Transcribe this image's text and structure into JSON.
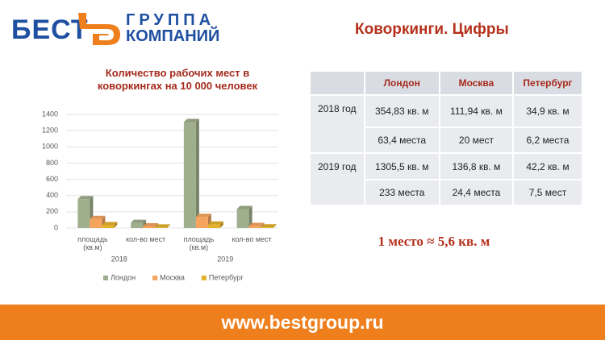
{
  "header": {
    "logo_main": "БЕСТ",
    "logo_top": "ГРУППА",
    "logo_bottom": "КОМПАНИЙ",
    "title": "Коворкинги. Цифры"
  },
  "chart_data": {
    "type": "bar",
    "title": "Количество рабочих мест в коворкингах на 10 000 человек",
    "categories": [
      "площадь (кв.м)",
      "кол-во мест",
      "площадь (кв.м)",
      "кол-во мест"
    ],
    "groups": [
      "2018",
      "2019"
    ],
    "series": [
      {
        "name": "Лондон",
        "color": "#9fae8c",
        "values": [
          354.83,
          63.4,
          1305.5,
          233
        ]
      },
      {
        "name": "Москва",
        "color": "#f5a45e",
        "values": [
          111.94,
          20,
          136.8,
          24.4
        ]
      },
      {
        "name": "Петербург",
        "color": "#e3b12a",
        "values": [
          34.9,
          6.2,
          42.2,
          7.5
        ]
      }
    ],
    "ylim": [
      0,
      1400
    ],
    "yticks": [
      0,
      200,
      400,
      600,
      800,
      1000,
      1200,
      1400
    ],
    "grid": true,
    "legend": "bottom"
  },
  "table": {
    "header": [
      "Лондон",
      "Москва",
      "Петербург"
    ],
    "rows": [
      {
        "year": "2018 год",
        "area": [
          "354,83 кв. м",
          "111,94 кв. м",
          "34,9 кв. м"
        ],
        "seats": [
          "63,4 места",
          "20 мест",
          "6,2 места"
        ]
      },
      {
        "year": "2019 год",
        "area": [
          "1305,5 кв. м",
          "136,8 кв. м",
          "42,2 кв. м"
        ],
        "seats": [
          "233 места",
          "24,4 места",
          "7,5 мест"
        ]
      }
    ]
  },
  "note": "1 место ≈ 5,6 кв. м",
  "footer": "www.bestgroup.ru"
}
